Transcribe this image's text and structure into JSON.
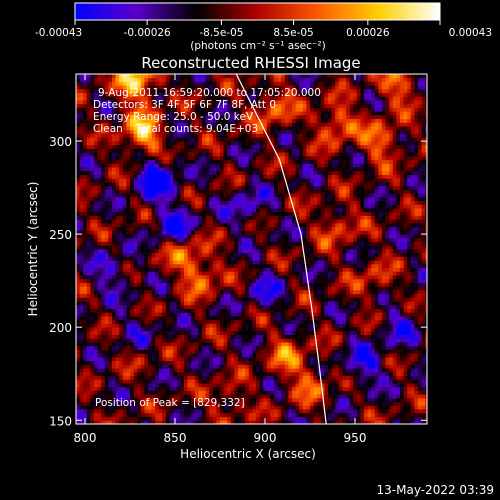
{
  "chart_data": {
    "type": "heatmap",
    "title": "Reconstructed RHESSI Image",
    "xlabel": "Heliocentric X (arcsec)",
    "ylabel": "Heliocentric Y (arcsec)",
    "xlim": [
      795,
      990
    ],
    "ylim": [
      148,
      336
    ],
    "x_ticks": [
      800,
      850,
      900,
      950
    ],
    "x_tick_labels": [
      "800",
      "850",
      "900",
      "950"
    ],
    "y_ticks": [
      150,
      200,
      250,
      300
    ],
    "y_tick_labels": [
      "150",
      "200",
      "250",
      "300"
    ],
    "colorbar": {
      "range": [
        -0.00043,
        0.00043
      ],
      "ticks": [
        -0.00043,
        -0.00026,
        -8.5e-05,
        8.5e-05,
        0.00026,
        0.00043
      ],
      "tick_labels": [
        "-0.00043",
        "-0.00026",
        "-8.5e-05",
        "8.5e-05",
        "0.00026",
        "0.00043"
      ],
      "unit_label": "(photons cm⁻² s⁻¹ asec⁻²)",
      "colors": [
        "#0000ff",
        "#5a00c8",
        "#000000",
        "#b00000",
        "#ff5a00",
        "#ffd000",
        "#ffffff"
      ]
    },
    "annotations": [
      "9-Aug-2011 16:59:20.000 to 17:05:20.000",
      "Detectors: 3F 4F 5F 6F 7F 8F, Att 0",
      "Energy Range: 25.0 - 50.0 keV",
      "Clean    Total counts: 9.04E+03",
      "Position of Peak = [829,332]"
    ],
    "peak": {
      "x": 829,
      "y": 332
    },
    "hot_spots": [
      {
        "x": 829,
        "y": 332,
        "value": 0.00043
      },
      {
        "x": 832,
        "y": 304,
        "value": 0.0004
      },
      {
        "x": 940,
        "y": 310,
        "value": 0.00028
      },
      {
        "x": 965,
        "y": 300,
        "value": 0.00026
      },
      {
        "x": 905,
        "y": 318,
        "value": 0.00024
      },
      {
        "x": 855,
        "y": 240,
        "value": 0.00022
      },
      {
        "x": 865,
        "y": 228,
        "value": 0.00024
      },
      {
        "x": 940,
        "y": 255,
        "value": 0.0002
      },
      {
        "x": 830,
        "y": 190,
        "value": 0.00018
      },
      {
        "x": 912,
        "y": 185,
        "value": 0.00022
      },
      {
        "x": 925,
        "y": 170,
        "value": 0.0002
      },
      {
        "x": 880,
        "y": 160,
        "value": 0.00016
      },
      {
        "x": 960,
        "y": 225,
        "value": 0.00016
      },
      {
        "x": 975,
        "y": 330,
        "value": 0.00024
      }
    ],
    "cold_spots": [
      {
        "x": 840,
        "y": 280,
        "value": -0.00036
      },
      {
        "x": 850,
        "y": 255,
        "value": -0.00028
      },
      {
        "x": 830,
        "y": 195,
        "value": -0.00024
      },
      {
        "x": 955,
        "y": 180,
        "value": -0.00024
      },
      {
        "x": 890,
        "y": 265,
        "value": -0.0002
      },
      {
        "x": 815,
        "y": 230,
        "value": -0.0002
      },
      {
        "x": 900,
        "y": 220,
        "value": -0.00018
      },
      {
        "x": 975,
        "y": 200,
        "value": -0.00018
      }
    ],
    "limb_curve": [
      [
        884,
        336
      ],
      [
        908,
        290
      ],
      [
        920,
        250
      ],
      [
        926,
        210
      ],
      [
        930,
        180
      ],
      [
        934,
        148
      ]
    ]
  },
  "footer": {
    "timestamp": "13-May-2022 03:39"
  }
}
